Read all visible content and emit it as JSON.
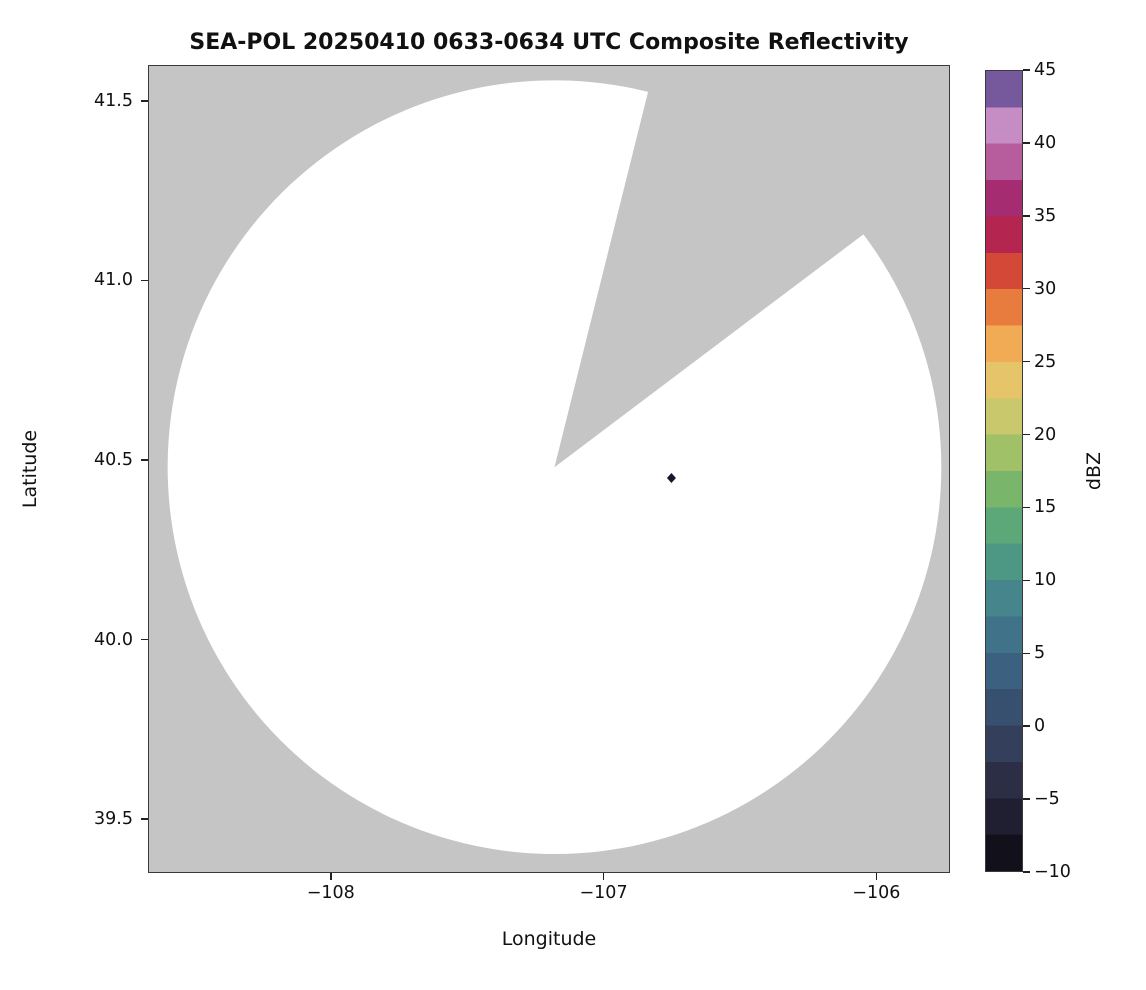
{
  "chart_data": {
    "type": "heatmap",
    "title": "SEA-POL 20250410 0633-0634 UTC Composite Reflectivity",
    "xlabel": "Longitude",
    "ylabel": "Latitude",
    "xlim": [
      -108.67,
      -105.73
    ],
    "ylim": [
      39.35,
      41.6
    ],
    "grid": false,
    "xticks": {
      "values": [
        -108,
        -107,
        -106
      ],
      "labels": [
        "−108",
        "−107",
        "−106"
      ]
    },
    "yticks": {
      "values": [
        41.5,
        41.0,
        40.5,
        40.0,
        39.5
      ],
      "labels": [
        "41.5",
        "41.0",
        "40.5",
        "40.0",
        "39.5"
      ]
    },
    "no_data_color": "#c5c5c5",
    "coverage": {
      "description": "radar coverage disk (white = scanned, no echo) with blocked sector shown gray",
      "center_lon": -107.18,
      "center_lat": 40.48,
      "radius_deg_lat": 1.08,
      "missing_sector_azimuth_deg": [
        14,
        53
      ],
      "fill": "#ffffff"
    },
    "echoes": [
      {
        "lon": -106.75,
        "lat": 40.45,
        "color": "#18152e",
        "shape": "diamond"
      }
    ],
    "colorbar": {
      "label": "dBZ",
      "min": -10,
      "max": 45,
      "band_width": 2.5,
      "ticks": {
        "values": [
          45,
          40,
          35,
          30,
          25,
          20,
          15,
          10,
          5,
          0,
          -5,
          -10
        ],
        "labels": [
          "45",
          "40",
          "35",
          "30",
          "25",
          "20",
          "15",
          "10",
          "5",
          "0",
          "−5",
          "−10"
        ]
      },
      "stops": [
        [
          -10,
          "#0a0810"
        ],
        [
          -7.5,
          "#191726"
        ],
        [
          -5,
          "#27263b"
        ],
        [
          -2.5,
          "#313651"
        ],
        [
          0,
          "#364766"
        ],
        [
          2.5,
          "#3a5879"
        ],
        [
          5,
          "#3e6a86"
        ],
        [
          7.5,
          "#427c8c"
        ],
        [
          10,
          "#478e8a"
        ],
        [
          12.5,
          "#52a07f"
        ],
        [
          15,
          "#68af70"
        ],
        [
          17.5,
          "#8abc67"
        ],
        [
          20,
          "#b5c569"
        ],
        [
          22.5,
          "#dcca70"
        ],
        [
          25,
          "#f0bd64"
        ],
        [
          26.5,
          "#f0a751"
        ],
        [
          28,
          "#ec8c43"
        ],
        [
          30,
          "#e06038"
        ],
        [
          31.5,
          "#d24337"
        ],
        [
          33,
          "#bd2c47"
        ],
        [
          35,
          "#a61d5c"
        ],
        [
          36.5,
          "#a52f74"
        ],
        [
          38,
          "#b04e93"
        ],
        [
          40,
          "#c377b1"
        ],
        [
          41.5,
          "#c591c6"
        ],
        [
          43,
          "#9a77b8"
        ],
        [
          44,
          "#6a4d93"
        ],
        [
          45,
          "#2c1344"
        ]
      ]
    }
  }
}
